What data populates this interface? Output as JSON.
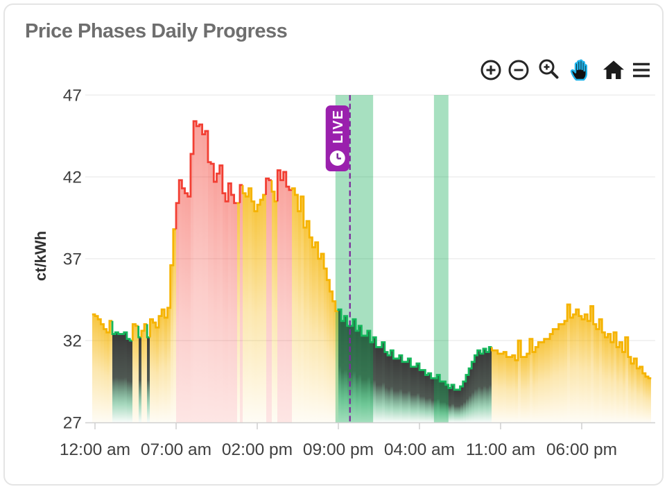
{
  "card": {
    "title": "Price Phases Daily Progress"
  },
  "toolbar": {
    "icon_color": "#262626",
    "active_color": "#1FB2E9",
    "buttons": [
      "zoom-in",
      "zoom-out",
      "zoom-box",
      "pan",
      "reset-axes",
      "menu"
    ]
  },
  "chart_data": {
    "type": "line",
    "step": true,
    "title": "Price Phases Daily Progress",
    "ylabel": "ct/kWh",
    "ylim": [
      27,
      47
    ],
    "y_ticks": [
      27,
      32,
      37,
      42,
      47
    ],
    "x_tick_hours": [
      0,
      7,
      14,
      21,
      28,
      35,
      42
    ],
    "x_tick_labels": [
      "12:00 am",
      "07:00 am",
      "02:00 pm",
      "09:00 pm",
      "04:00 am",
      "11:00 am",
      "06:00 pm"
    ],
    "grid": true,
    "start_hour": -0.25,
    "step_hours": 0.25,
    "values": [
      33.6,
      33.5,
      33.3,
      33.0,
      32.7,
      32.5,
      33.2,
      32.4,
      32.5,
      32.4,
      32.4,
      32.5,
      32.1,
      32.0,
      33.0,
      32.9,
      32.2,
      32.6,
      33.0,
      32.2,
      33.3,
      33.1,
      32.8,
      33.5,
      33.9,
      33.4,
      34.0,
      36.6,
      38.8,
      40.4,
      41.8,
      41.3,
      41.0,
      40.8,
      43.4,
      45.4,
      45.1,
      45.2,
      44.6,
      44.8,
      42.9,
      42.8,
      41.7,
      42.2,
      42.7,
      41.0,
      40.5,
      41.6,
      40.9,
      40.4,
      40.4,
      41.5,
      41.0,
      40.8,
      41.3,
      40.5,
      39.9,
      40.3,
      40.6,
      40.9,
      41.9,
      41.8,
      41.1,
      40.5,
      42.4,
      41.8,
      42.3,
      41.4,
      41.2,
      41.3,
      40.9,
      39.9,
      40.8,
      38.9,
      39.3,
      38.3,
      37.7,
      38.0,
      37.0,
      37.3,
      36.4,
      35.7,
      35.0,
      34.4,
      33.8,
      33.9,
      33.2,
      33.5,
      32.9,
      32.9,
      33.3,
      32.6,
      32.9,
      32.3,
      32.3,
      32.6,
      31.9,
      32.2,
      31.6,
      31.6,
      31.9,
      31.3,
      31.1,
      31.4,
      30.9,
      30.9,
      31.1,
      30.7,
      30.7,
      30.9,
      30.4,
      30.4,
      30.6,
      30.2,
      30.2,
      29.9,
      30.0,
      29.7,
      29.7,
      29.9,
      29.5,
      29.5,
      29.3,
      29.1,
      29.3,
      29.0,
      29.0,
      29.2,
      29.5,
      29.9,
      30.3,
      30.7,
      31.1,
      31.4,
      31.2,
      31.5,
      31.3,
      31.6,
      31.4,
      31.4,
      31.2,
      31.2,
      31.3,
      31.0,
      31.0,
      31.1,
      30.8,
      32.0,
      31.0,
      31.0,
      31.2,
      32.1,
      31.3,
      31.6,
      31.9,
      31.9,
      32.1,
      32.1,
      32.4,
      32.7,
      32.7,
      33.0,
      33.0,
      33.2,
      34.2,
      33.4,
      33.6,
      33.9,
      33.5,
      33.3,
      33.6,
      33.2,
      34.1,
      33.0,
      32.7,
      33.3,
      32.5,
      32.2,
      32.4,
      31.9,
      32.5,
      31.6,
      31.9,
      31.3,
      32.2,
      31.0,
      30.6,
      30.9,
      30.3,
      30.4,
      30.0,
      29.8,
      29.7
    ],
    "phases": [
      {
        "start": -0.25,
        "end": 1.5,
        "kind": "normal"
      },
      {
        "start": 1.5,
        "end": 3.25,
        "kind": "cheap"
      },
      {
        "start": 3.25,
        "end": 3.75,
        "kind": "normal"
      },
      {
        "start": 3.75,
        "end": 4.0,
        "kind": "cheap"
      },
      {
        "start": 4.0,
        "end": 4.5,
        "kind": "normal"
      },
      {
        "start": 4.5,
        "end": 4.75,
        "kind": "cheap"
      },
      {
        "start": 4.75,
        "end": 7.0,
        "kind": "normal"
      },
      {
        "start": 7.0,
        "end": 12.25,
        "kind": "expensive"
      },
      {
        "start": 12.25,
        "end": 12.5,
        "kind": "normal"
      },
      {
        "start": 12.5,
        "end": 12.75,
        "kind": "expensive"
      },
      {
        "start": 12.75,
        "end": 14.75,
        "kind": "normal"
      },
      {
        "start": 14.75,
        "end": 15.25,
        "kind": "expensive"
      },
      {
        "start": 15.25,
        "end": 15.75,
        "kind": "normal"
      },
      {
        "start": 15.75,
        "end": 17.0,
        "kind": "expensive"
      },
      {
        "start": 17.0,
        "end": 21.0,
        "kind": "normal"
      },
      {
        "start": 21.0,
        "end": 34.25,
        "kind": "cheap"
      },
      {
        "start": 34.25,
        "end": 48.0,
        "kind": "normal"
      }
    ],
    "phase_colors": {
      "normal": "#F5B301",
      "expensive": "#F23F33",
      "cheap": "#15B75C"
    },
    "highlight_bands": [
      {
        "start": 20.75,
        "end": 24.0
      },
      {
        "start": 29.25,
        "end": 30.5
      }
    ],
    "band_color": "#10AA55",
    "live_marker": {
      "hour": 22.0,
      "label": "LIVE",
      "color": "#7D2A9B",
      "box_color": "#9A20AD"
    }
  }
}
